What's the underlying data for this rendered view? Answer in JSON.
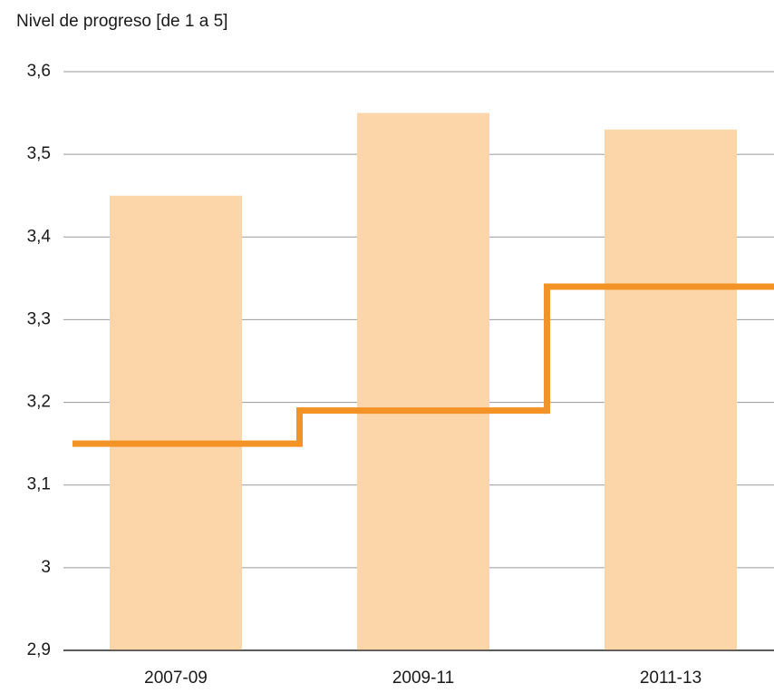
{
  "chart_data": {
    "type": "bar",
    "title": "Nivel de progreso [de 1 a 5]",
    "categories": [
      "2007-09",
      "2009-11",
      "2011-13"
    ],
    "series": [
      {
        "type": "bar",
        "color": "#fcd6a9",
        "values": [
          3.45,
          3.55,
          3.53
        ]
      },
      {
        "type": "step",
        "color": "#f39325",
        "values": [
          3.15,
          3.19,
          3.34
        ]
      }
    ],
    "ylim": [
      2.9,
      3.6
    ],
    "yticks": [
      {
        "value": 2.9,
        "label": "2,9"
      },
      3,
      {
        "value": 3.1,
        "label": "3,1"
      },
      {
        "value": 3.2,
        "label": "3,2"
      },
      {
        "value": 3.3,
        "label": "3,3"
      },
      {
        "value": 3.4,
        "label": "3,4"
      },
      {
        "value": 3.5,
        "label": "3,5"
      },
      {
        "value": 3.6,
        "label": "3,6"
      }
    ],
    "grid": true
  }
}
